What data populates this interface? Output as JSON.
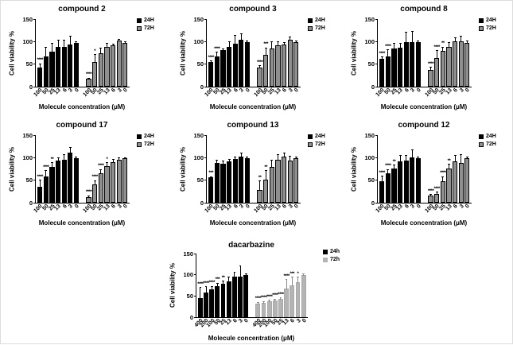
{
  "chart_data": [
    {
      "type": "bar",
      "title": "compound 2",
      "xlabel": "Molecule concentration (μM)",
      "ylabel": "Cell viability %",
      "ylim": [
        0,
        150
      ],
      "yticks": [
        0,
        50,
        100,
        150
      ],
      "categories": [
        "100",
        "50",
        "25",
        "13",
        "6",
        "3",
        "0"
      ],
      "legend": [
        {
          "name": "24H",
          "color": "#000000",
          "border": "#000000"
        },
        {
          "name": "72H",
          "color": "#8f8f8f",
          "border": "#000000"
        }
      ],
      "series": [
        {
          "name": "24H",
          "color": "#000000",
          "border": "#000000",
          "err_color": "#000000",
          "values": [
            43,
            67,
            78,
            89,
            89,
            93,
            98
          ],
          "errors": [
            9,
            22,
            19,
            16,
            16,
            20,
            3
          ],
          "stars": [
            "****",
            "",
            "",
            "",
            "",
            "",
            ""
          ]
        },
        {
          "name": "72H",
          "color": "#8f8f8f",
          "border": "#000000",
          "err_color": "#000000",
          "values": [
            17,
            55,
            74,
            88,
            91,
            103,
            98
          ],
          "errors": [
            3,
            17,
            13,
            9,
            4,
            3,
            3
          ],
          "stars": [
            "****",
            "*",
            "",
            "",
            "",
            "",
            ""
          ]
        }
      ]
    },
    {
      "type": "bar",
      "title": "compound 3",
      "xlabel": "Molecule concentration (μM)",
      "ylabel": "Cell viability %",
      "ylim": [
        0,
        150
      ],
      "yticks": [
        0,
        50,
        100,
        150
      ],
      "categories": [
        "100",
        "50",
        "25",
        "13",
        "6",
        "3",
        "0"
      ],
      "legend": [
        {
          "name": "24H",
          "color": "#000000",
          "border": "#000000"
        },
        {
          "name": "72H",
          "color": "#8f8f8f",
          "border": "#000000"
        }
      ],
      "series": [
        {
          "name": "24H",
          "color": "#000000",
          "border": "#000000",
          "err_color": "#000000",
          "values": [
            54,
            67,
            82,
            89,
            96,
            104,
            99
          ],
          "errors": [
            4,
            10,
            3,
            11,
            19,
            14,
            4
          ],
          "stars": [
            "****",
            "****",
            "",
            "",
            "",
            "",
            ""
          ]
        },
        {
          "name": "72H",
          "color": "#8f8f8f",
          "border": "#000000",
          "err_color": "#000000",
          "values": [
            43,
            70,
            85,
            91,
            94,
            105,
            99
          ],
          "errors": [
            4,
            17,
            15,
            9,
            5,
            7,
            4
          ],
          "stars": [
            "****",
            "***",
            "",
            "",
            "",
            "",
            ""
          ]
        }
      ]
    },
    {
      "type": "bar",
      "title": "compound 8",
      "xlabel": "Molecule concentration (μM)",
      "ylabel": "Cell viability %",
      "ylim": [
        0,
        150
      ],
      "yticks": [
        0,
        50,
        100,
        150
      ],
      "categories": [
        "100",
        "50",
        "25",
        "13",
        "6",
        "3",
        "0"
      ],
      "legend": [
        {
          "name": "24H",
          "color": "#000000",
          "border": "#000000"
        },
        {
          "name": "72H",
          "color": "#8f8f8f",
          "border": "#000000"
        }
      ],
      "series": [
        {
          "name": "24H",
          "color": "#000000",
          "border": "#000000",
          "err_color": "#000000",
          "values": [
            61,
            68,
            85,
            87,
            99,
            99,
            99
          ],
          "errors": [
            6,
            15,
            12,
            11,
            22,
            25,
            3
          ],
          "stars": [
            "****",
            "****",
            "",
            "",
            "",
            "",
            ""
          ]
        },
        {
          "name": "72H",
          "color": "#8f8f8f",
          "border": "#000000",
          "err_color": "#000000",
          "values": [
            38,
            63,
            79,
            88,
            100,
            101,
            98
          ],
          "errors": [
            6,
            18,
            10,
            11,
            10,
            12,
            4
          ],
          "stars": [
            "****",
            "****",
            "**",
            "",
            "",
            "",
            ""
          ]
        }
      ]
    },
    {
      "type": "bar",
      "title": "compound 17",
      "xlabel": "Molecule concentration (μM)",
      "ylabel": "Cell viability %",
      "ylim": [
        0,
        150
      ],
      "yticks": [
        0,
        50,
        100,
        150
      ],
      "categories": [
        "100",
        "50",
        "25",
        "13",
        "6",
        "3",
        "0"
      ],
      "legend": [
        {
          "name": "24H",
          "color": "#000000",
          "border": "#000000"
        },
        {
          "name": "72H",
          "color": "#8f8f8f",
          "border": "#000000"
        }
      ],
      "series": [
        {
          "name": "24H",
          "color": "#000000",
          "border": "#000000",
          "err_color": "#000000",
          "values": [
            36,
            58,
            80,
            94,
            95,
            111,
            99
          ],
          "errors": [
            15,
            14,
            10,
            7,
            12,
            12,
            3
          ],
          "stars": [
            "****",
            "****",
            "**",
            "",
            "",
            "",
            ""
          ]
        },
        {
          "name": "72H",
          "color": "#8f8f8f",
          "border": "#000000",
          "err_color": "#000000",
          "values": [
            13,
            40,
            65,
            82,
            90,
            95,
            99
          ],
          "errors": [
            3,
            10,
            10,
            8,
            7,
            5,
            2
          ],
          "stars": [
            "****",
            "****",
            "****",
            "*",
            "",
            "",
            ""
          ]
        }
      ]
    },
    {
      "type": "bar",
      "title": "compound 13",
      "xlabel": "Molecule concentration (μM)",
      "ylabel": "Cell viability %",
      "ylim": [
        0,
        150
      ],
      "yticks": [
        0,
        50,
        100,
        150
      ],
      "categories": [
        "100",
        "50",
        "25",
        "13",
        "6",
        "3",
        "0"
      ],
      "legend": [
        {
          "name": "24H",
          "color": "#000000",
          "border": "#000000"
        },
        {
          "name": "72H",
          "color": "#8f8f8f",
          "border": "#000000"
        }
      ],
      "series": [
        {
          "name": "24H",
          "color": "#000000",
          "border": "#000000",
          "err_color": "#000000",
          "values": [
            56,
            88,
            86,
            92,
            98,
            103,
            99
          ],
          "errors": [
            3,
            8,
            7,
            5,
            5,
            8,
            4
          ],
          "stars": [
            "***",
            "",
            "",
            "",
            "",
            "",
            ""
          ]
        },
        {
          "name": "72H",
          "color": "#8f8f8f",
          "border": "#000000",
          "err_color": "#000000",
          "values": [
            29,
            52,
            79,
            95,
            102,
            93,
            99
          ],
          "errors": [
            20,
            20,
            16,
            12,
            10,
            12,
            4
          ],
          "stars": [
            "**",
            "**",
            "",
            "",
            "",
            "",
            ""
          ]
        }
      ]
    },
    {
      "type": "bar",
      "title": "compound 12",
      "xlabel": "Molecule concentration (μM)",
      "ylabel": "Cell viability %",
      "ylim": [
        0,
        150
      ],
      "yticks": [
        0,
        50,
        100,
        150
      ],
      "categories": [
        "100",
        "50",
        "25",
        "13",
        "6",
        "3",
        "0"
      ],
      "legend": [
        {
          "name": "24H",
          "color": "#000000",
          "border": "#000000"
        },
        {
          "name": "72H",
          "color": "#8f8f8f",
          "border": "#000000"
        }
      ],
      "series": [
        {
          "name": "24H",
          "color": "#000000",
          "border": "#000000",
          "err_color": "#000000",
          "values": [
            48,
            65,
            76,
            92,
            94,
            101,
            99
          ],
          "errors": [
            12,
            10,
            8,
            14,
            12,
            17,
            4
          ],
          "stars": [
            "****",
            "****",
            "**",
            "",
            "",
            "",
            ""
          ]
        },
        {
          "name": "72H",
          "color": "#8f8f8f",
          "border": "#000000",
          "err_color": "#000000",
          "values": [
            16,
            20,
            47,
            76,
            91,
            89,
            99
          ],
          "errors": [
            3,
            4,
            12,
            10,
            15,
            18,
            3
          ],
          "stars": [
            "****",
            "****",
            "****",
            "**",
            "",
            "",
            ""
          ]
        }
      ]
    },
    {
      "type": "bar",
      "title": "dacarbazine",
      "xlabel": "Molecule concentration (μM)",
      "ylabel": "Cell viability %",
      "ylim": [
        0,
        150
      ],
      "yticks": [
        0,
        50,
        100,
        150
      ],
      "categories": [
        "400",
        "200",
        "100",
        "50",
        "25",
        "13",
        "6",
        "3",
        "0"
      ],
      "legend": [
        {
          "name": "24h",
          "color": "#000000",
          "border": "#000000"
        },
        {
          "name": "72h",
          "color": "#b4b4b4",
          "border": "#b4b4b4"
        }
      ],
      "series": [
        {
          "name": "24h",
          "color": "#000000",
          "border": "#000000",
          "err_color": "#000000",
          "values": [
            46,
            58,
            66,
            73,
            78,
            85,
            95,
            95,
            100
          ],
          "errors": [
            25,
            15,
            8,
            8,
            8,
            10,
            12,
            26,
            3
          ],
          "stars": [
            "****",
            "****",
            "****",
            "***",
            "**",
            "",
            "",
            "",
            ""
          ]
        },
        {
          "name": "72h",
          "color": "#b4b4b4",
          "border": "#a8a8a8",
          "err_color": "#8a8a8a",
          "values": [
            32,
            34,
            37,
            40,
            43,
            67,
            75,
            83,
            100
          ],
          "errors": [
            4,
            4,
            4,
            4,
            4,
            23,
            20,
            12,
            4
          ],
          "stars": [
            "****",
            "****",
            "****",
            "****",
            "****",
            "****",
            "***",
            "*",
            ""
          ]
        }
      ]
    }
  ]
}
